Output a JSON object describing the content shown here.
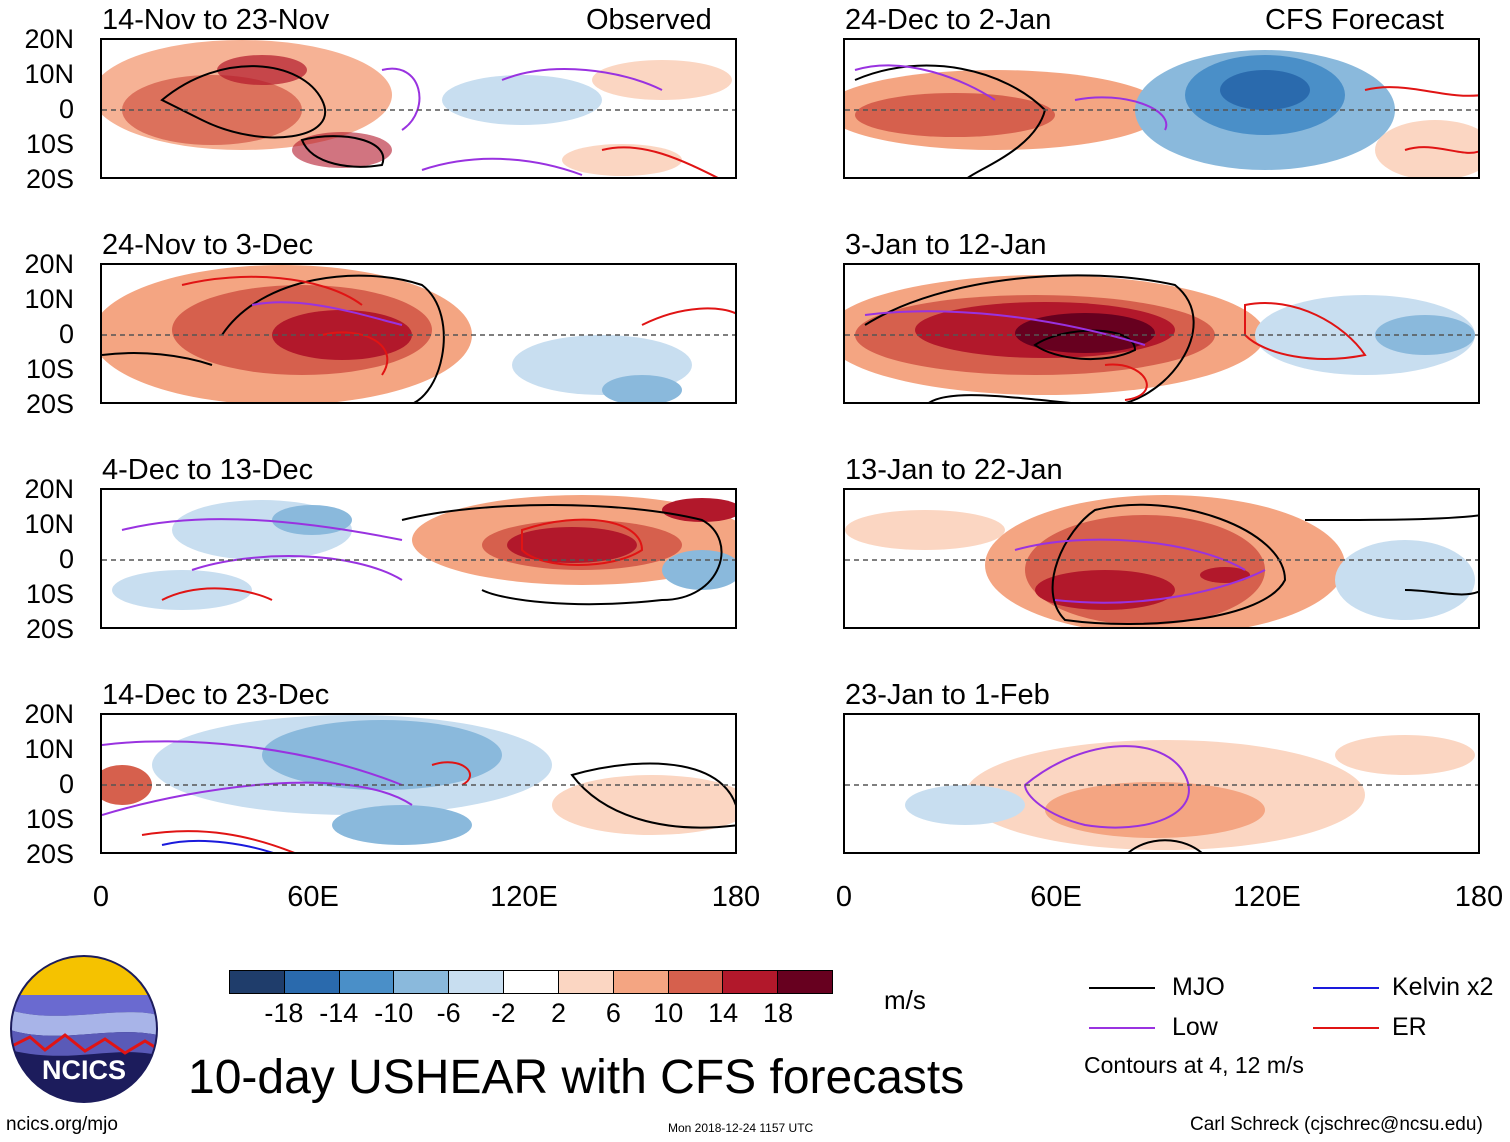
{
  "left_header": "Observed",
  "right_header": "CFS Forecast",
  "lat_labels": [
    "20N",
    "10N",
    "0",
    "10S",
    "20S"
  ],
  "lon_labels": [
    "0",
    "60E",
    "120E",
    "180"
  ],
  "panels_left": [
    {
      "title": "14-Nov to 23-Nov"
    },
    {
      "title": "24-Nov to 3-Dec"
    },
    {
      "title": "4-Dec to 13-Dec"
    },
    {
      "title": "14-Dec to 23-Dec"
    }
  ],
  "panels_right": [
    {
      "title": "24-Dec to 2-Jan"
    },
    {
      "title": "3-Jan to 12-Jan"
    },
    {
      "title": "13-Jan to 22-Jan"
    },
    {
      "title": "23-Jan to 1-Feb"
    }
  ],
  "colorbar": {
    "labels": [
      "-18",
      "-14",
      "-10",
      "-6",
      "-2",
      "2",
      "6",
      "10",
      "14",
      "18"
    ],
    "colors": [
      "#1f3d6b",
      "#2a6aad",
      "#4a8fc8",
      "#8ab9dc",
      "#c8def0",
      "#ffffff",
      "#fbd6c2",
      "#f4a582",
      "#d6604d",
      "#b2182b",
      "#67001f"
    ],
    "units": "m/s"
  },
  "legend": {
    "mjo": "MJO",
    "kelvin": "Kelvin x2",
    "low": "Low",
    "er": "ER",
    "contours_note": "Contours at 4, 12 m/s",
    "colors": {
      "mjo": "#000000",
      "kelvin": "#1a1adc",
      "low": "#9932e0",
      "er": "#e01414"
    }
  },
  "title": "10-day USHEAR with CFS forecasts",
  "logo_text": "NCICS",
  "footer_left": "ncics.org/mjo",
  "footer_center": "Mon 2018-12-24 1157 UTC",
  "footer_right": "Carl Schreck (cjschrec@ncsu.edu)"
}
